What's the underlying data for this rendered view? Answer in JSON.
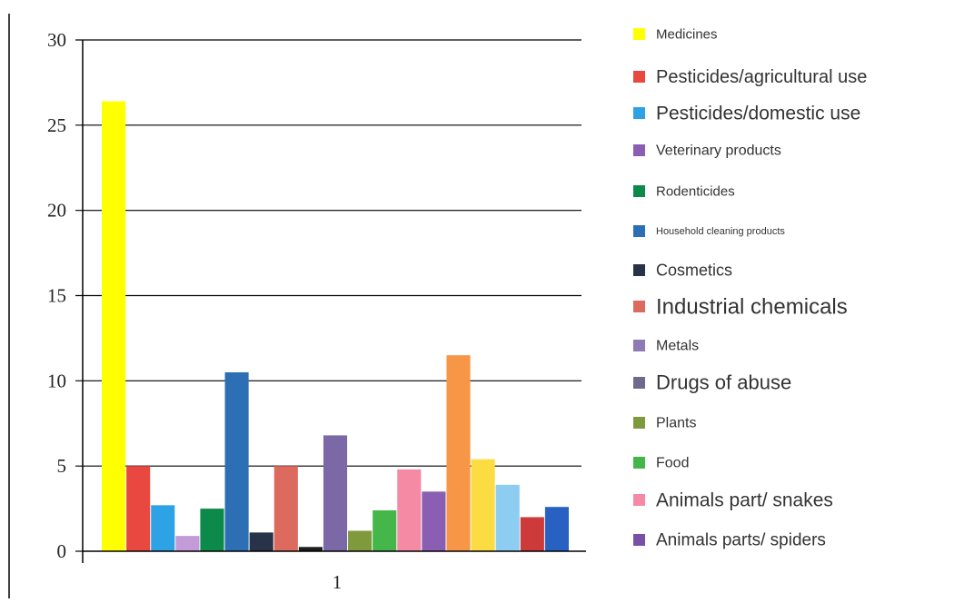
{
  "chart_data": {
    "type": "bar",
    "categories": [
      "1"
    ],
    "ylim": [
      0,
      30
    ],
    "yticks": [
      0,
      5,
      10,
      15,
      20,
      25,
      30
    ],
    "grid": true,
    "legend_position": "right",
    "title": "",
    "xlabel": "",
    "ylabel": "",
    "series": [
      {
        "name": "Medicines",
        "values": [
          26.4
        ],
        "color": "#ffff00"
      },
      {
        "name": "Pesticides/agricultural use",
        "values": [
          5.0
        ],
        "color": "#e8483f"
      },
      {
        "name": "Pesticides/domestic use",
        "values": [
          2.7
        ],
        "color": "#2da3e6"
      },
      {
        "name": "Veterinary products",
        "values": [
          0.9
        ],
        "color": "#c39bd8"
      },
      {
        "name": "Rodenticides",
        "values": [
          2.5
        ],
        "color": "#0b8a4a"
      },
      {
        "name": "Household cleaning products",
        "values": [
          10.5
        ],
        "color": "#2d6fb5"
      },
      {
        "name": "Cosmetics",
        "values": [
          1.1
        ],
        "color": "#283248"
      },
      {
        "name": "Industrial chemicals",
        "values": [
          5.0
        ],
        "color": "#dd6a5e"
      },
      {
        "name": "Metals",
        "values": [
          0.25
        ],
        "color": "#1c1c1c"
      },
      {
        "name": "Drugs of abuse",
        "values": [
          6.8
        ],
        "color": "#7b68a6"
      },
      {
        "name": "Plants",
        "values": [
          1.2
        ],
        "color": "#7e9a3c"
      },
      {
        "name": "Food",
        "values": [
          2.4
        ],
        "color": "#45b649"
      },
      {
        "name": "Animals part/ snakes",
        "values": [
          4.8
        ],
        "color": "#f48aa3"
      },
      {
        "name": "Animals parts/ spiders",
        "values": [
          3.5
        ],
        "color": "#8a5fb3"
      },
      {
        "name": "",
        "values": [
          11.5
        ],
        "color": "#f79646"
      },
      {
        "name": "",
        "values": [
          5.4
        ],
        "color": "#fbdc43"
      },
      {
        "name": "",
        "values": [
          3.9
        ],
        "color": "#8ecdf2"
      },
      {
        "name": "",
        "values": [
          2.0
        ],
        "color": "#cc3a3a"
      },
      {
        "name": "",
        "values": [
          2.6
        ],
        "color": "#2861c1"
      }
    ],
    "legend": [
      {
        "label": "Medicines",
        "color": "#ffff00"
      },
      {
        "label": "Pesticides/agricultural use",
        "color": "#e8483f"
      },
      {
        "label": "Pesticides/domestic use",
        "color": "#2da3e6"
      },
      {
        "label": "Veterinary products",
        "color": "#8a5fb3"
      },
      {
        "label": "Rodenticides",
        "color": "#0b8a4a"
      },
      {
        "label": "Household cleaning products",
        "color": "#2d6fb5"
      },
      {
        "label": "Cosmetics",
        "color": "#283248"
      },
      {
        "label": "Industrial chemicals",
        "color": "#dd6a5e"
      },
      {
        "label": "Metals",
        "color": "#8e7bb5"
      },
      {
        "label": "Drugs of abuse",
        "color": "#6e6a8e"
      },
      {
        "label": "Plants",
        "color": "#7e9a3c"
      },
      {
        "label": "Food",
        "color": "#45b649"
      },
      {
        "label": "Animals part/ snakes",
        "color": "#f48aa3"
      },
      {
        "label": "Animals parts/ spiders",
        "color": "#7a4fa8"
      }
    ]
  }
}
